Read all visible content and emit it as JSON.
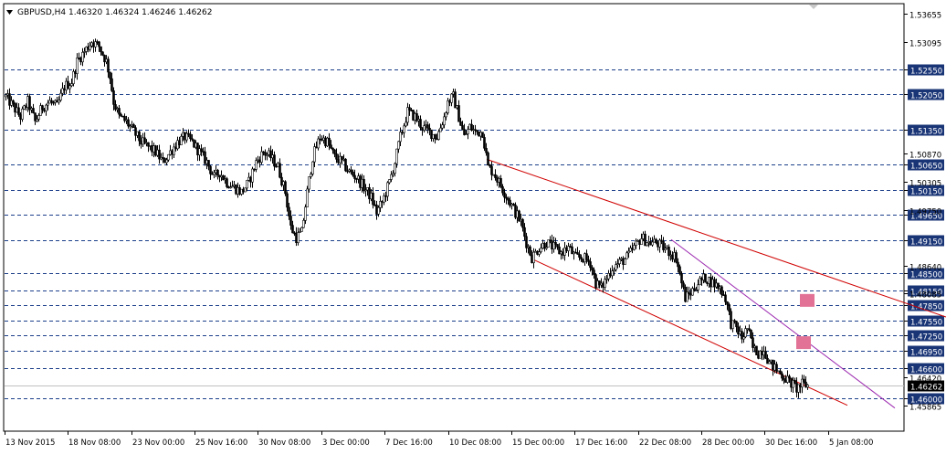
{
  "chart_data": {
    "type": "candlestick",
    "symbol_header": "GBPUSD,H4  1.46320 1.46324 1.46246 1.46262",
    "price_axis": {
      "ylim": [
        1.4535,
        1.5385
      ],
      "plain_labels": [
        "1.53655",
        "1.53095",
        "1.50870",
        "1.50305",
        "1.49750",
        "1.48640",
        "1.48085",
        "1.46420",
        "1.45865"
      ],
      "tagged_levels": [
        "1.52550",
        "1.52050",
        "1.51350",
        "1.50650",
        "1.50150",
        "1.49650",
        "1.49150",
        "1.48500",
        "1.48150",
        "1.47850",
        "1.47550",
        "1.47250",
        "1.46950",
        "1.46600",
        "1.46000"
      ],
      "current_price": "1.46262"
    },
    "time_axis": {
      "labels": [
        "13 Nov 2015",
        "18 Nov 08:00",
        "23 Nov 00:00",
        "25 Nov 16:00",
        "30 Nov 08:00",
        "3 Dec 00:00",
        "7 Dec 16:00",
        "10 Dec 08:00",
        "15 Dec 00:00",
        "17 Dec 16:00",
        "22 Dec 08:00",
        "28 Dec 00:00",
        "30 Dec 16:00",
        "5 Jan 08:00"
      ]
    },
    "price_path": [
      [
        0,
        1.521
      ],
      [
        6,
        1.52
      ],
      [
        14,
        1.518
      ],
      [
        22,
        1.516
      ],
      [
        30,
        1.519
      ],
      [
        38,
        1.515
      ],
      [
        46,
        1.518
      ],
      [
        54,
        1.519
      ],
      [
        62,
        1.518
      ],
      [
        70,
        1.522
      ],
      [
        78,
        1.523
      ],
      [
        84,
        1.527
      ],
      [
        92,
        1.529
      ],
      [
        100,
        1.531
      ],
      [
        108,
        1.53
      ],
      [
        116,
        1.527
      ],
      [
        120,
        1.524
      ],
      [
        124,
        1.519
      ],
      [
        130,
        1.516
      ],
      [
        138,
        1.515
      ],
      [
        146,
        1.513
      ],
      [
        154,
        1.511
      ],
      [
        162,
        1.51
      ],
      [
        170,
        1.509
      ],
      [
        178,
        1.507
      ],
      [
        186,
        1.509
      ],
      [
        194,
        1.511
      ],
      [
        202,
        1.512
      ],
      [
        210,
        1.511
      ],
      [
        218,
        1.509
      ],
      [
        226,
        1.507
      ],
      [
        234,
        1.504
      ],
      [
        240,
        1.505
      ],
      [
        248,
        1.503
      ],
      [
        256,
        1.502
      ],
      [
        264,
        1.501
      ],
      [
        272,
        1.503
      ],
      [
        280,
        1.507
      ],
      [
        288,
        1.509
      ],
      [
        296,
        1.508
      ],
      [
        304,
        1.506
      ],
      [
        312,
        1.501
      ],
      [
        318,
        1.494
      ],
      [
        324,
        1.492
      ],
      [
        330,
        1.493
      ],
      [
        336,
        1.501
      ],
      [
        342,
        1.508
      ],
      [
        350,
        1.512
      ],
      [
        358,
        1.511
      ],
      [
        366,
        1.508
      ],
      [
        374,
        1.507
      ],
      [
        382,
        1.505
      ],
      [
        390,
        1.504
      ],
      [
        398,
        1.502
      ],
      [
        406,
        1.5
      ],
      [
        412,
        1.497
      ],
      [
        418,
        1.499
      ],
      [
        426,
        1.503
      ],
      [
        432,
        1.507
      ],
      [
        438,
        1.512
      ],
      [
        446,
        1.517
      ],
      [
        454,
        1.516
      ],
      [
        462,
        1.514
      ],
      [
        470,
        1.513
      ],
      [
        478,
        1.512
      ],
      [
        486,
        1.516
      ],
      [
        490,
        1.519
      ],
      [
        496,
        1.52
      ],
      [
        502,
        1.516
      ],
      [
        508,
        1.512
      ],
      [
        514,
        1.514
      ],
      [
        520,
        1.513
      ],
      [
        528,
        1.513
      ],
      [
        534,
        1.506
      ],
      [
        540,
        1.505
      ],
      [
        546,
        1.503
      ],
      [
        552,
        1.501
      ],
      [
        558,
        1.499
      ],
      [
        564,
        1.497
      ],
      [
        570,
        1.495
      ],
      [
        576,
        1.491
      ],
      [
        582,
        1.488
      ],
      [
        590,
        1.49
      ],
      [
        598,
        1.491
      ],
      [
        606,
        1.49
      ],
      [
        614,
        1.489
      ],
      [
        622,
        1.49
      ],
      [
        630,
        1.488
      ],
      [
        638,
        1.488
      ],
      [
        646,
        1.487
      ],
      [
        652,
        1.483
      ],
      [
        658,
        1.482
      ],
      [
        664,
        1.484
      ],
      [
        670,
        1.486
      ],
      [
        678,
        1.487
      ],
      [
        686,
        1.488
      ],
      [
        694,
        1.49
      ],
      [
        702,
        1.492
      ],
      [
        710,
        1.491
      ],
      [
        718,
        1.491
      ],
      [
        726,
        1.49
      ],
      [
        734,
        1.489
      ],
      [
        740,
        1.488
      ],
      [
        746,
        1.483
      ],
      [
        750,
        1.48
      ],
      [
        756,
        1.481
      ],
      [
        764,
        1.483
      ],
      [
        772,
        1.484
      ],
      [
        780,
        1.483
      ],
      [
        788,
        1.482
      ],
      [
        794,
        1.48
      ],
      [
        800,
        1.475
      ],
      [
        806,
        1.474
      ],
      [
        812,
        1.472
      ],
      [
        818,
        1.474
      ],
      [
        824,
        1.47
      ],
      [
        830,
        1.469
      ],
      [
        836,
        1.47
      ],
      [
        842,
        1.467
      ],
      [
        848,
        1.466
      ],
      [
        854,
        1.465
      ],
      [
        860,
        1.464
      ],
      [
        866,
        1.463
      ],
      [
        872,
        1.462
      ],
      [
        878,
        1.4628
      ],
      [
        884,
        1.4626
      ]
    ],
    "trendlines": [
      {
        "color": "#d00000",
        "x": [
          533,
          1036
        ],
        "y": [
          1.50755,
          1.4762
        ]
      },
      {
        "color": "#d00000",
        "x": [
          582,
          928
        ],
        "y": [
          1.4878,
          1.45865
        ]
      },
      {
        "color": "#9c2ab0",
        "x": [
          735,
          980
        ],
        "y": [
          1.4916,
          1.4581
        ]
      }
    ],
    "markers": [
      {
        "color": "#e27396",
        "x": 884,
        "y": 1.4795
      },
      {
        "color": "#e27396",
        "x": 880,
        "y": 1.4711
      }
    ]
  }
}
